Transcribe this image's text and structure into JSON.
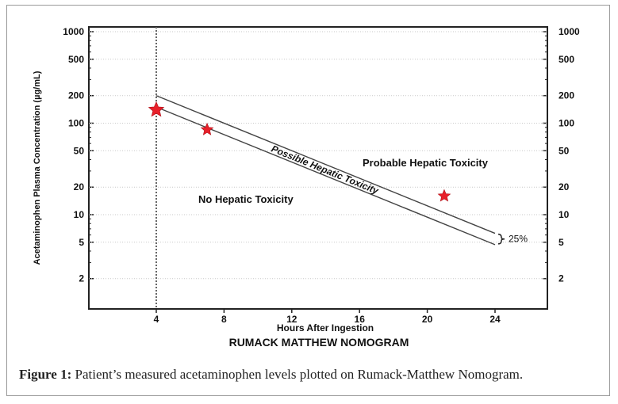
{
  "chart_data": {
    "type": "scatter",
    "title": "RUMACK MATTHEW NOMOGRAM",
    "xlabel": "Hours After Ingestion",
    "ylabel": "Acetaminophen Plasma Concentration (µg/mL)",
    "x_ticks": [
      4,
      8,
      12,
      16,
      20,
      24
    ],
    "y_ticks": [
      1000,
      500,
      200,
      100,
      50,
      20,
      10,
      5,
      2
    ],
    "y_scale": "log",
    "xlim": [
      0,
      27
    ],
    "ylim": [
      1,
      1200
    ],
    "vertical_line_x": 4,
    "upper_line": [
      {
        "x": 4,
        "y": 200
      },
      {
        "x": 24,
        "y": 6.25
      }
    ],
    "lower_line": [
      {
        "x": 4,
        "y": 150
      },
      {
        "x": 24,
        "y": 4.7
      }
    ],
    "patient_points": [
      {
        "x": 4,
        "y": 140
      },
      {
        "x": 7,
        "y": 85
      },
      {
        "x": 21,
        "y": 16
      }
    ],
    "regions": {
      "probable": "Probable Hepatic Toxicity",
      "possible": "Possible Hepatic Toxicity",
      "none": "No Hepatic Toxicity"
    },
    "band_label": "25%",
    "marker_color": "#e8202a",
    "line_color": "#444444"
  },
  "caption": {
    "label": "Figure 1:",
    "text": "Patient’s measured acetaminophen levels plotted on Rumack-Matthew Nomogram."
  }
}
